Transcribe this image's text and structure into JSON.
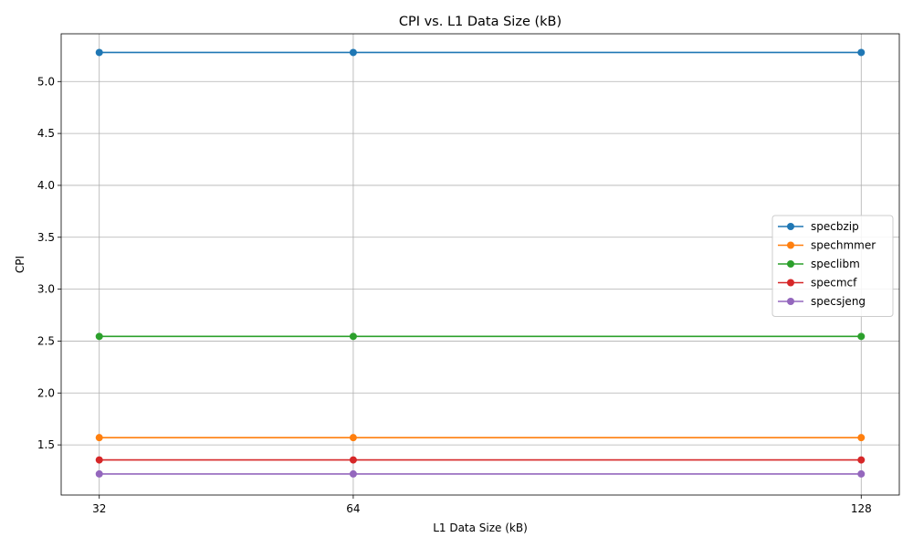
{
  "chart_data": {
    "type": "line",
    "title": "CPI vs. L1 Data Size (kB)",
    "xlabel": "L1 Data Size (kB)",
    "ylabel": "CPI",
    "x": [
      32,
      64,
      128
    ],
    "x_tick_labels": [
      "32",
      "64",
      "128"
    ],
    "xlim": [
      27.2,
      132.8
    ],
    "ylim": [
      1.017,
      5.46
    ],
    "y_ticks": [
      1.5,
      2.0,
      2.5,
      3.0,
      3.5,
      4.0,
      4.5,
      5.0
    ],
    "y_tick_labels": [
      "1.5",
      "2.0",
      "2.5",
      "3.0",
      "3.5",
      "4.0",
      "4.5",
      "5.0"
    ],
    "grid": true,
    "legend_position": "center-right",
    "series": [
      {
        "name": "specbzip",
        "values": [
          5.28,
          5.28,
          5.28
        ],
        "color": "#1f77b4"
      },
      {
        "name": "spechmmer",
        "values": [
          1.57,
          1.57,
          1.57
        ],
        "color": "#ff7f0e"
      },
      {
        "name": "speclibm",
        "values": [
          2.545,
          2.545,
          2.545
        ],
        "color": "#2ca02c"
      },
      {
        "name": "specmcf",
        "values": [
          1.355,
          1.355,
          1.355
        ],
        "color": "#d62728"
      },
      {
        "name": "specsjeng",
        "values": [
          1.22,
          1.22,
          1.22
        ],
        "color": "#9467bd"
      }
    ]
  }
}
